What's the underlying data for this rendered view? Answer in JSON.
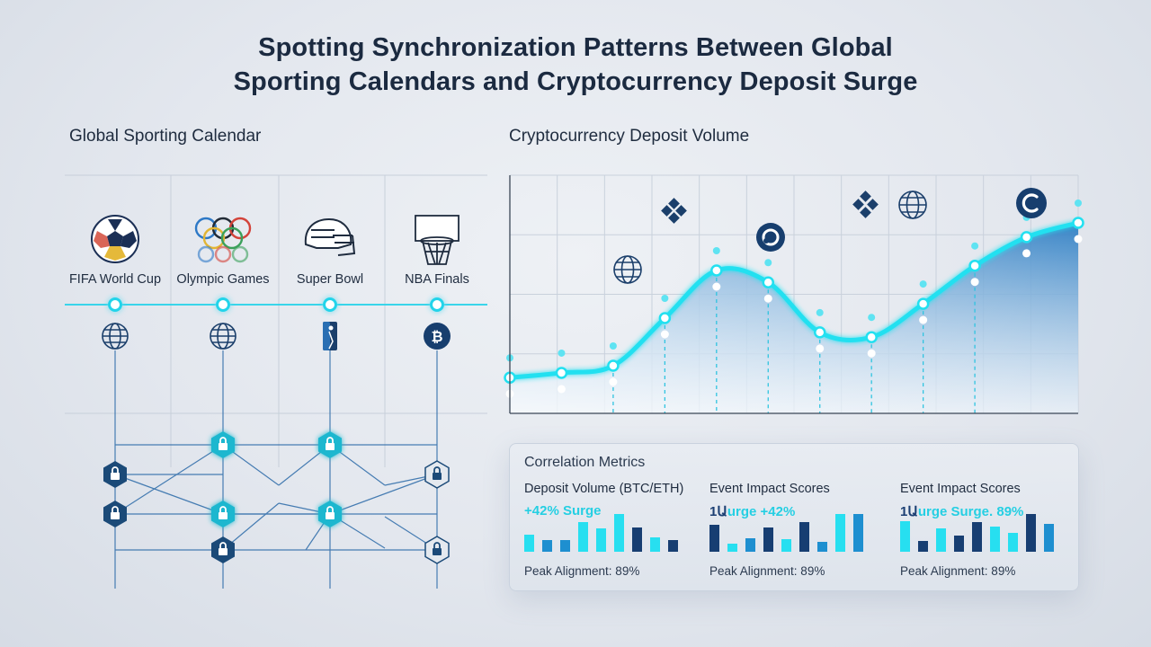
{
  "title": {
    "line1": "Spotting Synchronization Patterns Between Global",
    "line2": "Sporting Calendars and Cryptocurrency Deposit Surge"
  },
  "calendar": {
    "title": "Global Sporting Calendar",
    "events": [
      {
        "label": "FIFA World Cup",
        "icon": "soccer-ball-icon",
        "marker": "globe-icon"
      },
      {
        "label": "Olympic Games",
        "icon": "olympic-rings-icon",
        "marker": "globe-icon"
      },
      {
        "label": "Super Bowl",
        "icon": "football-helmet-icon",
        "marker": "nba-logo-icon"
      },
      {
        "label": "NBA Finals",
        "icon": "basketball-hoop-icon",
        "marker": "bitcoin-icon"
      }
    ],
    "colors": {
      "timeline": "#27d3ea",
      "node": "#1b4a78",
      "node_highlight": "#1fb7cf"
    }
  },
  "deposit_chart": {
    "title": "Cryptocurrency Deposit Volume",
    "colors": {
      "line": "#22e0f0",
      "area_top": "#2f7fc4",
      "area_bottom": "#eaf3fb"
    },
    "icons": [
      "globe-icon",
      "binance-icon",
      "crypto-coin-icon",
      "binance-icon",
      "globe-icon",
      "c-coin-icon"
    ]
  },
  "chart_data": {
    "type": "area",
    "title": "Cryptocurrency Deposit Volume",
    "xlabel": "",
    "ylabel": "",
    "x": [
      0,
      1,
      2,
      3,
      4,
      5,
      6,
      7,
      8,
      9,
      10,
      11
    ],
    "values": [
      15,
      17,
      20,
      40,
      60,
      55,
      34,
      32,
      46,
      62,
      74,
      80
    ],
    "ylim": [
      0,
      100
    ],
    "grid": true
  },
  "metrics": {
    "title": "Correlation Metrics",
    "cols": [
      {
        "label": "Deposit Volume (BTC/ETH)",
        "value_a": "+42% Surge",
        "value_b": "",
        "peak": "Peak Alignment: 89%",
        "bars": [
          45,
          30,
          32,
          78,
          62,
          100,
          65,
          38,
          30
        ]
      },
      {
        "label": "Event Impact Scores",
        "value_a": "1Ա",
        "value_b": "urge +42%",
        "peak": "Peak Alignment: 89%",
        "bars": [
          68,
          20,
          35,
          62,
          32,
          75,
          25,
          95,
          95
        ]
      },
      {
        "label": "Event Impact Scores",
        "value_a": "1Ա",
        "value_b": "urge Surge. 89%",
        "peak": "Peak Alignment: 89%",
        "bars": [
          72,
          25,
          55,
          38,
          70,
          58,
          45,
          88,
          65
        ]
      }
    ],
    "colors": {
      "cyan": "#27dff0",
      "mid": "#1e8fd0",
      "dark": "#173e72"
    }
  }
}
